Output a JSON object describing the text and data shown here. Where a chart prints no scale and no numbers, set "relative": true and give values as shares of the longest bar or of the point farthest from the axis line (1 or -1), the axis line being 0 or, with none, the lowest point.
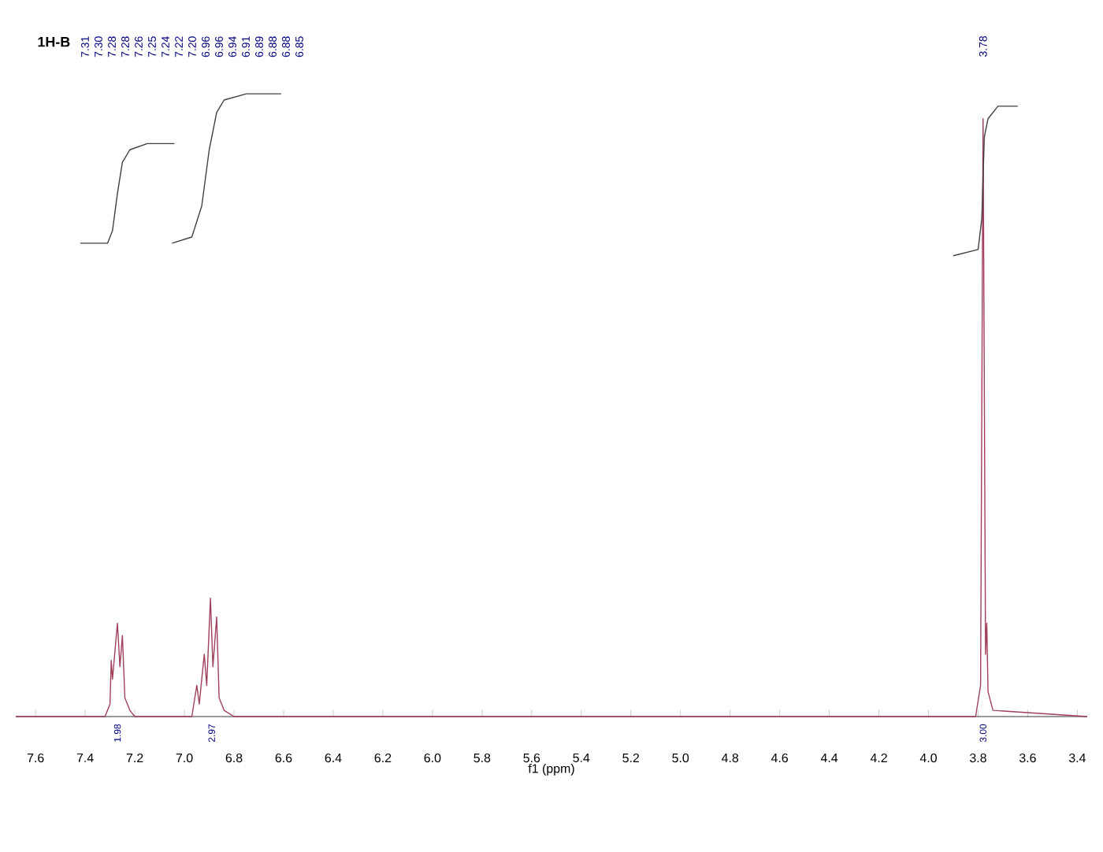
{
  "chart_data": {
    "type": "line",
    "title": "1H-B",
    "xlabel": "f1 (ppm)",
    "relative": true,
    "xlim": [
      7.68,
      3.36
    ],
    "xticks": [
      7.6,
      7.4,
      7.2,
      {
        "value": 7,
        "label": "7.0"
      },
      6.8,
      6.6,
      6.4,
      6.2,
      {
        "value": 6,
        "label": "6.0"
      },
      5.8,
      5.6,
      5.4,
      5.2,
      {
        "value": 5,
        "label": "5.0"
      },
      4.8,
      4.6,
      4.4,
      4.2,
      {
        "value": 4,
        "label": "4.0"
      },
      3.8,
      3.6,
      3.4
    ],
    "series": [
      {
        "color": "#a0405a",
        "x": [
          7.68,
          7.32,
          7.3,
          7.295,
          7.29,
          7.27,
          7.26,
          7.25,
          7.24,
          7.22,
          7.2,
          6.97,
          6.95,
          6.94,
          6.92,
          6.91,
          6.895,
          6.885,
          6.87,
          6.86,
          6.84,
          6.8,
          3.81,
          3.79,
          3.78,
          3.77,
          3.765,
          3.76,
          3.74,
          3.36
        ],
        "values": [
          0,
          0,
          0.02,
          0.09,
          0.06,
          0.15,
          0.08,
          0.13,
          0.03,
          0.01,
          0,
          0,
          0.05,
          0.02,
          0.1,
          0.05,
          0.19,
          0.08,
          0.16,
          0.03,
          0.01,
          0,
          0,
          0.05,
          0.96,
          0.1,
          0.15,
          0.04,
          0.01,
          0
        ]
      },
      {
        "color": "#404040",
        "x": [
          7.42,
          7.31,
          7.29,
          7.27,
          7.25,
          7.22,
          7.15,
          7.04
        ],
        "values": [
          0.76,
          0.76,
          0.78,
          0.84,
          0.89,
          0.91,
          0.92,
          0.92
        ]
      },
      {
        "color": "#404040",
        "x": [
          7.05,
          6.97,
          6.93,
          6.9,
          6.87,
          6.84,
          6.75,
          6.61
        ],
        "values": [
          0.76,
          0.77,
          0.82,
          0.91,
          0.97,
          0.99,
          1.0,
          1.0
        ]
      },
      {
        "color": "#404040",
        "x": [
          3.9,
          3.8,
          3.785,
          3.775,
          3.76,
          3.72,
          3.64
        ],
        "values": [
          0.74,
          0.75,
          0.8,
          0.93,
          0.96,
          0.98,
          0.98
        ]
      }
    ],
    "annotations": [
      "7.31",
      "7.30",
      "7.28",
      "7.28",
      "7.26",
      "7.25",
      "7.24",
      "7.22",
      "7.20",
      "6.96",
      "6.96",
      "6.94",
      "6.91",
      "6.89",
      "6.88",
      "6.88",
      "6.85",
      "3.78",
      "1.98",
      "2.97",
      "3.00"
    ]
  }
}
